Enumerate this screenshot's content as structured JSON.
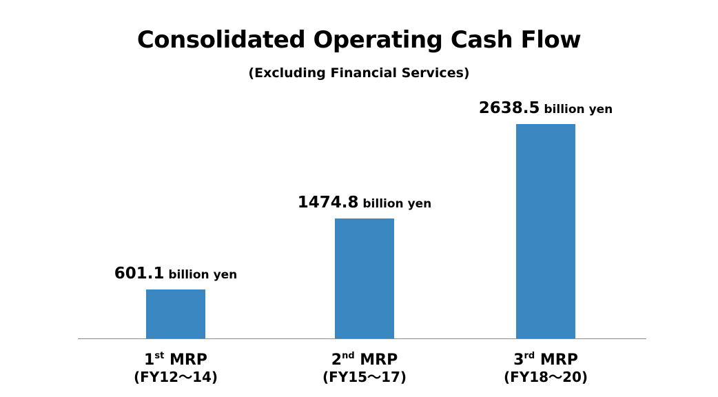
{
  "chart_data": {
    "type": "bar",
    "title": "Consolidated Operating Cash Flow",
    "subtitle": "(Excluding Financial Services)",
    "xlabel": "",
    "ylabel": "",
    "unit": "billion yen",
    "ylim": [
      0,
      2638.5
    ],
    "grid": false,
    "categories": [
      {
        "num": "1",
        "sup": "st",
        "name": " MRP",
        "period": "(FY12〜14)"
      },
      {
        "num": "2",
        "sup": "nd",
        "name": " MRP",
        "period": "(FY15〜17)"
      },
      {
        "num": "3",
        "sup": "rd",
        "name": " MRP",
        "period": "(FY18〜20)"
      }
    ],
    "values": [
      601.1,
      1474.8,
      2638.5
    ],
    "value_labels": [
      "601.1",
      "1474.8",
      "2638.5"
    ],
    "bar_color": "#3a87c1"
  }
}
